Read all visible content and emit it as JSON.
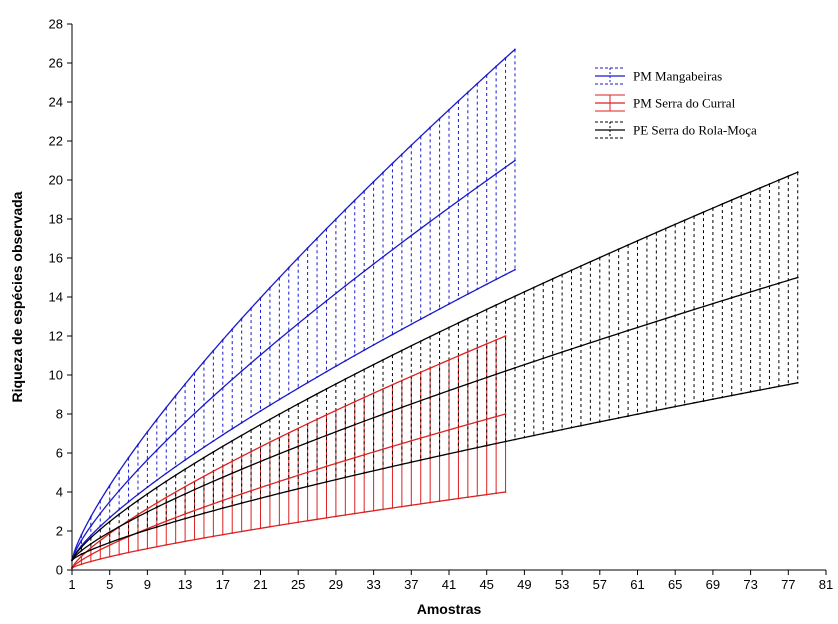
{
  "chart_data": {
    "type": "line",
    "title": "",
    "xlabel": "Amostras",
    "ylabel": "Riqueza de espécies observada",
    "xlim": [
      1,
      81
    ],
    "ylim": [
      0,
      28
    ],
    "x_ticks": [
      1,
      5,
      9,
      13,
      17,
      21,
      25,
      29,
      33,
      37,
      41,
      45,
      49,
      53,
      57,
      61,
      65,
      69,
      73,
      77,
      81
    ],
    "y_ticks": [
      0,
      2,
      4,
      6,
      8,
      10,
      12,
      14,
      16,
      18,
      20,
      22,
      24,
      26,
      28
    ],
    "grid": false,
    "legend_position": "top-right",
    "series": [
      {
        "name": "PM Mangabeiras",
        "color": "#1a1acc",
        "band_style": "dashed",
        "n_samples": 48,
        "mean_end": 21.0,
        "upper_end": 26.7,
        "lower_end": 15.4,
        "start": 0.5
      },
      {
        "name": "PM Serra do Curral",
        "color": "#dd2222",
        "band_style": "solid",
        "n_samples": 47,
        "mean_end": 8.0,
        "upper_end": 12.0,
        "lower_end": 4.0,
        "start": 0.1
      },
      {
        "name": "PE Serra do Rola-Moça",
        "color": "#000000",
        "band_style": "dashed",
        "n_samples": 78,
        "mean_end": 15.0,
        "upper_end": 20.4,
        "lower_end": 9.6,
        "start": 0.5
      }
    ]
  }
}
